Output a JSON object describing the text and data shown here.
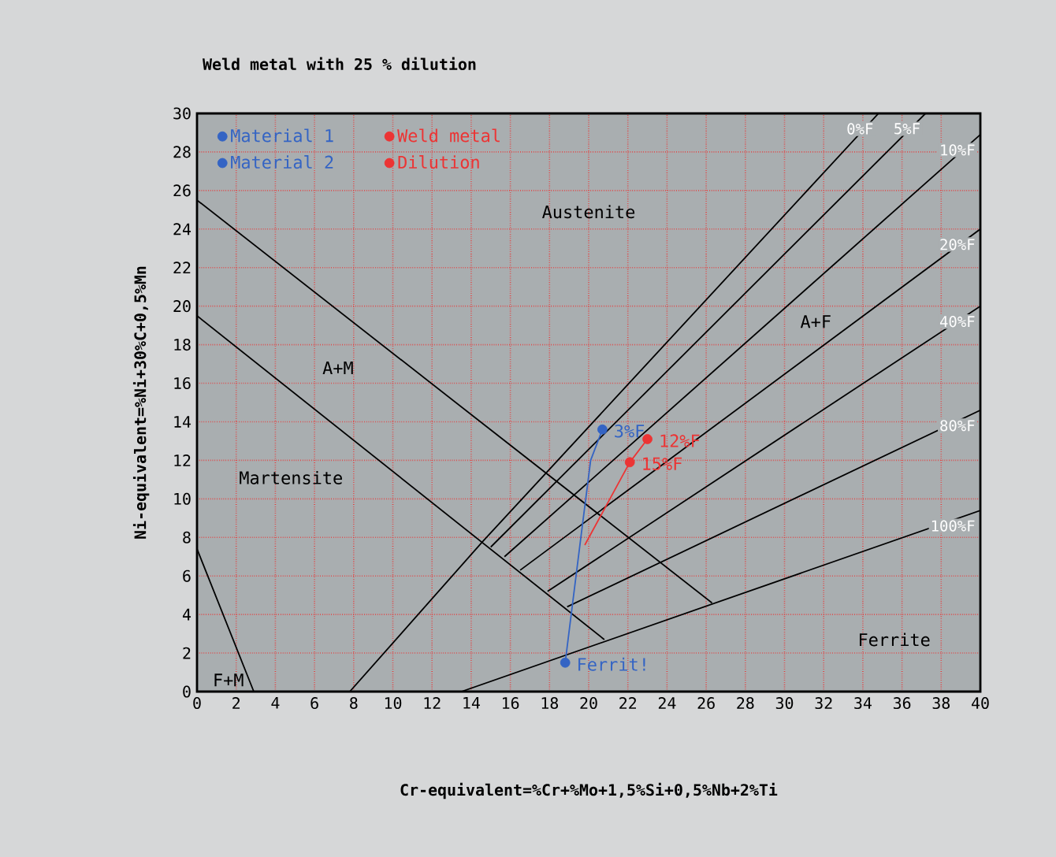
{
  "chart_data": {
    "type": "line",
    "title": "Weld metal with 25 % dilution",
    "xlabel": "Cr-equivalent=%Cr+%Mo+1,5%Si+0,5%Nb+2%Ti",
    "ylabel": "Ni-equivalent=%Ni+30%C+0,5%Mn",
    "xlim": [
      0,
      40
    ],
    "ylim": [
      0,
      30
    ],
    "xticks": [
      0,
      2,
      4,
      6,
      8,
      10,
      12,
      14,
      16,
      18,
      20,
      22,
      24,
      26,
      28,
      30,
      32,
      34,
      36,
      38,
      40
    ],
    "yticks": [
      0,
      2,
      4,
      6,
      8,
      10,
      12,
      14,
      16,
      18,
      20,
      22,
      24,
      26,
      28,
      30
    ],
    "grid": true,
    "legend": "top left",
    "series": [
      {
        "color": "#000000",
        "x": [
          0,
          26.3
        ],
        "values": [
          25.5,
          4.6
        ]
      },
      {
        "color": "#000000",
        "x": [
          0,
          20.8
        ],
        "values": [
          19.5,
          2.7
        ]
      },
      {
        "color": "#000000",
        "x": [
          0,
          2.9
        ],
        "values": [
          7.4,
          0
        ]
      },
      {
        "name": "0%F",
        "color": "#000000",
        "x": [
          7.8,
          14.6,
          34.8
        ],
        "values": [
          0,
          7.8,
          30
        ]
      },
      {
        "name": "5%F",
        "color": "#000000",
        "x": [
          15.0,
          37.2
        ],
        "values": [
          7.5,
          30
        ]
      },
      {
        "name": "10%F",
        "color": "#000000",
        "x": [
          15.7,
          40
        ],
        "values": [
          7.0,
          28.9
        ]
      },
      {
        "name": "20%F",
        "color": "#000000",
        "x": [
          16.5,
          40
        ],
        "values": [
          6.3,
          24.0
        ]
      },
      {
        "name": "40%F",
        "color": "#000000",
        "x": [
          17.9,
          40
        ],
        "values": [
          5.2,
          20.0
        ]
      },
      {
        "name": "80%F",
        "color": "#000000",
        "x": [
          18.9,
          40
        ],
        "values": [
          4.4,
          14.6
        ]
      },
      {
        "name": "100%F",
        "color": "#000000",
        "x": [
          13.5,
          40
        ],
        "values": [
          0,
          9.4
        ]
      },
      {
        "color": "#3464c4",
        "x": [
          18.8,
          19.6,
          20.1,
          20.7
        ],
        "values": [
          1.5,
          8.0,
          12.0,
          13.6
        ]
      },
      {
        "color": "#ec3434",
        "x": [
          19.8,
          22.1,
          23.0
        ],
        "values": [
          7.6,
          11.9,
          13.1
        ]
      },
      {
        "type": "scatter",
        "name": "Material 1",
        "color": "#3464c4",
        "x": [
          18.8
        ],
        "values": [
          1.5
        ]
      },
      {
        "type": "scatter",
        "name": "Weld metal",
        "color": "#ec3434",
        "x": [
          23.0
        ],
        "values": [
          13.1
        ]
      },
      {
        "type": "scatter",
        "name": "Material 2",
        "color": "#3464c4",
        "x": [
          20.7
        ],
        "values": [
          13.6
        ]
      },
      {
        "type": "scatter",
        "name": "Dilution",
        "color": "#ec3434",
        "x": [
          22.1
        ],
        "values": [
          11.9
        ]
      }
    ],
    "annotations": [
      "Austenite",
      "A+M",
      "A+F",
      "Martensite",
      "F+M",
      "Ferrite",
      {
        "text": "Ferrit!",
        "x": 18.8,
        "y": 1.5
      },
      {
        "text": "12%F",
        "x": 23.0,
        "y": 13.1
      },
      {
        "text": "3%F",
        "x": 20.7,
        "y": 13.6
      },
      {
        "text": "15%F",
        "x": 22.1,
        "y": 11.9
      }
    ]
  }
}
